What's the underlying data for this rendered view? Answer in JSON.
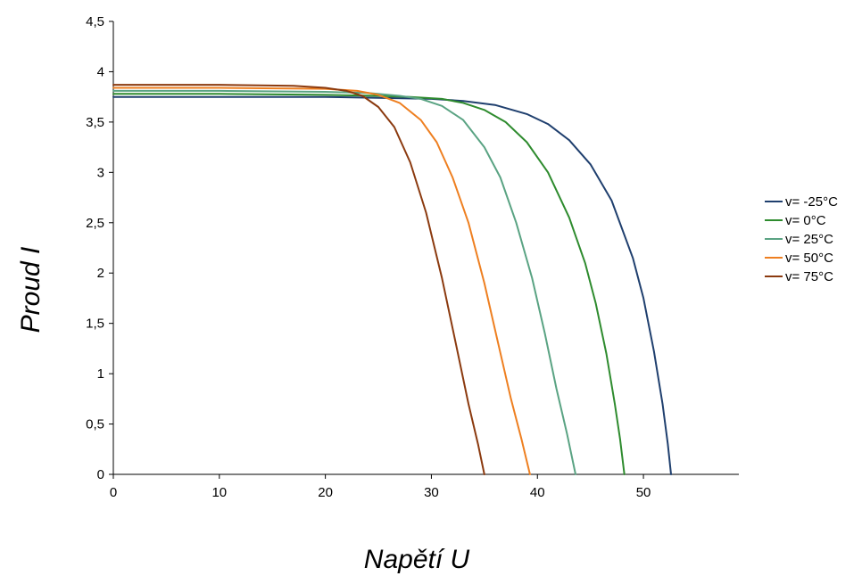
{
  "chart_data": {
    "type": "line",
    "xlabel": "Napětí U",
    "ylabel": "Proud I",
    "xlim": [
      0,
      59
    ],
    "ylim": [
      0,
      4.5
    ],
    "x_ticks": [
      0,
      10,
      20,
      30,
      40,
      50
    ],
    "x_tick_labels": [
      "0",
      "10",
      "20",
      "30",
      "40",
      "50"
    ],
    "y_ticks": [
      0,
      0.5,
      1,
      1.5,
      2,
      2.5,
      3,
      3.5,
      4,
      4.5
    ],
    "y_tick_labels": [
      "0",
      "0,5",
      "1",
      "1,5",
      "2",
      "2,5",
      "3",
      "3,5",
      "4",
      "4,5"
    ],
    "grid": false,
    "legend_position": "right",
    "series": [
      {
        "name": "v= -25°C",
        "color": "#1f3f6e",
        "points": [
          [
            0,
            3.75
          ],
          [
            10,
            3.75
          ],
          [
            20,
            3.75
          ],
          [
            25,
            3.74
          ],
          [
            30,
            3.73
          ],
          [
            33,
            3.71
          ],
          [
            36,
            3.67
          ],
          [
            39,
            3.58
          ],
          [
            41,
            3.48
          ],
          [
            43,
            3.32
          ],
          [
            45,
            3.08
          ],
          [
            47,
            2.72
          ],
          [
            49,
            2.15
          ],
          [
            50,
            1.75
          ],
          [
            51,
            1.22
          ],
          [
            51.8,
            0.7
          ],
          [
            52.3,
            0.3
          ],
          [
            52.6,
            0
          ]
        ]
      },
      {
        "name": "v= 0°C",
        "color": "#2e8b2e",
        "points": [
          [
            0,
            3.78
          ],
          [
            10,
            3.78
          ],
          [
            20,
            3.77
          ],
          [
            25,
            3.76
          ],
          [
            28,
            3.75
          ],
          [
            31,
            3.73
          ],
          [
            33,
            3.69
          ],
          [
            35,
            3.62
          ],
          [
            37,
            3.5
          ],
          [
            39,
            3.3
          ],
          [
            41,
            3.0
          ],
          [
            43,
            2.55
          ],
          [
            44.5,
            2.1
          ],
          [
            45.5,
            1.7
          ],
          [
            46.5,
            1.2
          ],
          [
            47.3,
            0.7
          ],
          [
            47.8,
            0.35
          ],
          [
            48.2,
            0
          ]
        ]
      },
      {
        "name": "v= 25°C",
        "color": "#5aa383",
        "points": [
          [
            0,
            3.81
          ],
          [
            10,
            3.81
          ],
          [
            20,
            3.8
          ],
          [
            24,
            3.79
          ],
          [
            27,
            3.76
          ],
          [
            29,
            3.73
          ],
          [
            31,
            3.66
          ],
          [
            33,
            3.52
          ],
          [
            35,
            3.25
          ],
          [
            36.5,
            2.95
          ],
          [
            38,
            2.5
          ],
          [
            39.5,
            1.95
          ],
          [
            40.7,
            1.4
          ],
          [
            41.8,
            0.85
          ],
          [
            42.8,
            0.4
          ],
          [
            43.6,
            0
          ]
        ]
      },
      {
        "name": "v= 50°C",
        "color": "#ee7f20",
        "points": [
          [
            0,
            3.84
          ],
          [
            10,
            3.84
          ],
          [
            20,
            3.83
          ],
          [
            23,
            3.81
          ],
          [
            25,
            3.77
          ],
          [
            27,
            3.69
          ],
          [
            29,
            3.52
          ],
          [
            30.5,
            3.3
          ],
          [
            32,
            2.95
          ],
          [
            33.5,
            2.5
          ],
          [
            35,
            1.9
          ],
          [
            36.3,
            1.3
          ],
          [
            37.5,
            0.75
          ],
          [
            38.5,
            0.35
          ],
          [
            39.3,
            0
          ]
        ]
      },
      {
        "name": "v= 75°C",
        "color": "#8b3a0f",
        "points": [
          [
            0,
            3.87
          ],
          [
            10,
            3.87
          ],
          [
            17,
            3.86
          ],
          [
            20,
            3.84
          ],
          [
            22,
            3.81
          ],
          [
            23.5,
            3.76
          ],
          [
            25,
            3.65
          ],
          [
            26.5,
            3.45
          ],
          [
            28,
            3.1
          ],
          [
            29.5,
            2.6
          ],
          [
            31,
            1.95
          ],
          [
            32.3,
            1.3
          ],
          [
            33.5,
            0.7
          ],
          [
            34.4,
            0.3
          ],
          [
            35,
            0
          ]
        ]
      }
    ]
  }
}
